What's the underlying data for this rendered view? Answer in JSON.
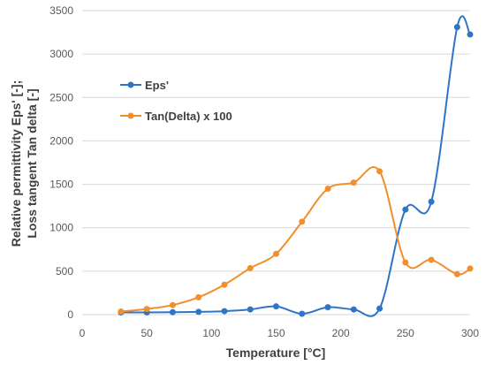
{
  "chart_data": {
    "type": "line",
    "title": "",
    "xlabel": "Temperature [°C]",
    "ylabel_lines": [
      "Relative permittivity Eps' [-];",
      "Loss tangent Tan delta [-]"
    ],
    "xlim": [
      0,
      300
    ],
    "ylim": [
      0,
      3500
    ],
    "xticks": [
      0,
      50,
      100,
      150,
      200,
      250,
      300
    ],
    "yticks": [
      0,
      500,
      1000,
      1500,
      2000,
      2500,
      3000,
      3500
    ],
    "grid": "horizontal",
    "legend_position": "left-upper",
    "x": [
      30,
      50,
      70,
      90,
      110,
      130,
      150,
      170,
      190,
      210,
      230,
      250,
      270,
      290,
      300
    ],
    "series": [
      {
        "name": "Eps'",
        "color": "#2e75c4",
        "values": [
          25,
          25,
          28,
          32,
          40,
          60,
          95,
          10,
          85,
          60,
          70,
          1210,
          1300,
          3310,
          3225
        ]
      },
      {
        "name": "Tan(Delta)  x 100",
        "color": "#f28e2b",
        "values": [
          35,
          65,
          110,
          200,
          345,
          535,
          700,
          1070,
          1450,
          1520,
          1650,
          600,
          630,
          465,
          530
        ]
      }
    ]
  }
}
